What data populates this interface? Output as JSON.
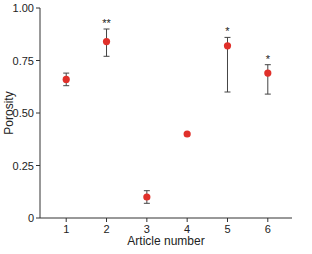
{
  "chart_data": {
    "type": "scatter",
    "x_label": "Article number",
    "y_label": "Porosity",
    "x": [
      1,
      2,
      3,
      4,
      5,
      6
    ],
    "values": [
      0.66,
      0.84,
      0.1,
      0.4,
      0.82,
      0.69
    ],
    "error_minus": [
      0.03,
      0.07,
      0.03,
      null,
      0.22,
      0.1
    ],
    "error_plus": [
      0.03,
      0.06,
      0.03,
      null,
      0.04,
      0.04
    ],
    "color": "#e0302a",
    "marker": "circle",
    "annotations": [
      {
        "x": 2,
        "text": "**"
      },
      {
        "x": 5,
        "text": "*"
      },
      {
        "x": 6,
        "text": "*"
      }
    ],
    "xlim": [
      0.35,
      6.6
    ],
    "xticks": [
      1,
      2,
      3,
      4,
      5,
      6
    ],
    "ylim": [
      0,
      1
    ],
    "yticks": [
      0,
      0.25,
      {
        "value": 0.5,
        "label": "0.50"
      },
      0.75,
      {
        "value": 1,
        "label": "1.00"
      }
    ],
    "grid": false
  }
}
